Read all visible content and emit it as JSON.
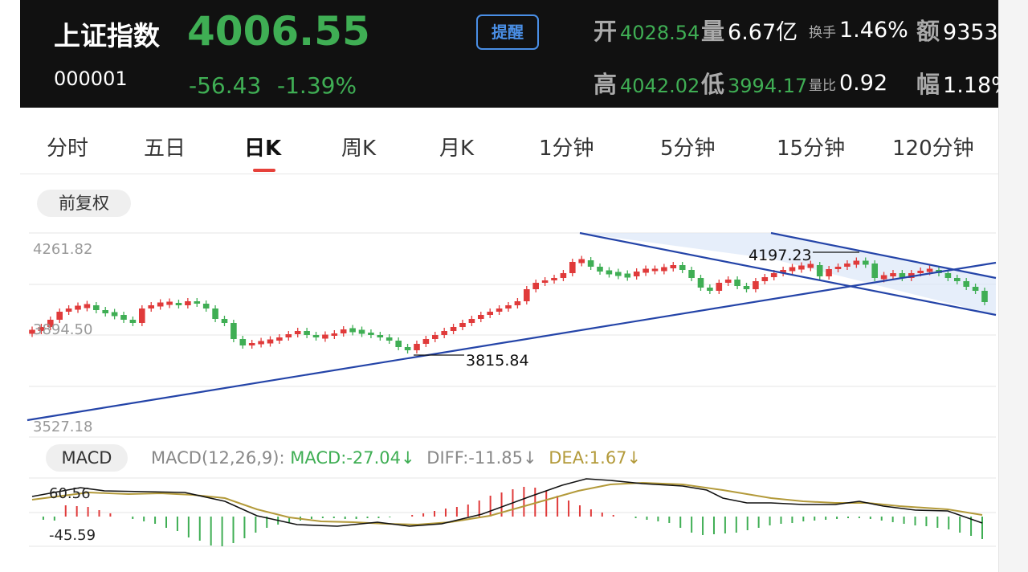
{
  "header": {
    "name": "上证指数",
    "code": "000001",
    "price": "4006.55",
    "change": "-56.43",
    "change_pct": "-1.39%",
    "remind_label": "提醒",
    "stats": {
      "open_label": "开",
      "open_value": "4028.54",
      "volume_label": "量",
      "volume_value": "6.67亿",
      "turnover_label": "换手",
      "turnover_value": "1.46%",
      "amount_label": "额",
      "amount_value": "9353",
      "high_label": "高",
      "high_value": "4042.02",
      "low_label": "低",
      "low_value": "3994.17",
      "volratio_label": "量比",
      "volratio_value": "0.92",
      "amplitude_label": "幅",
      "amplitude_value": "1.18%"
    }
  },
  "tabs": [
    {
      "label": "分时"
    },
    {
      "label": "五日"
    },
    {
      "label": "日K",
      "active": true
    },
    {
      "label": "周K"
    },
    {
      "label": "月K"
    },
    {
      "label": "1分钟"
    },
    {
      "label": "5分钟"
    },
    {
      "label": "15分钟"
    },
    {
      "label": "120分钟"
    }
  ],
  "adjust_label": "前复权",
  "kline": {
    "price_labels": {
      "top": "4261.82",
      "mid": "3894.50",
      "bottom": "3527.18"
    },
    "annotations": {
      "low_mark": "3815.84",
      "high_mark": "4197.23"
    }
  },
  "macd": {
    "button_label": "MACD",
    "params_label": "MACD(12,26,9):",
    "macd_value": "MACD:-27.04",
    "diff_value": "DIFF:-11.85",
    "dea_value": "DEA:1.67",
    "arrow": "↓",
    "top_label": "60.56",
    "bottom_label": "-45.59"
  },
  "colors": {
    "up": "#e03a3a",
    "down": "#3fae54",
    "trendline": "#2444a8",
    "dea_line": "#b39a3a",
    "header_bg": "#111111",
    "accent_blue": "#4a8fe6"
  }
}
